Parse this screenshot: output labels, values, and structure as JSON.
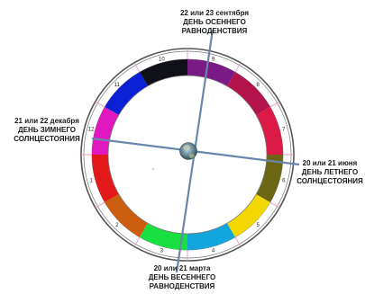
{
  "wheel": {
    "segments": [
      {
        "num": "1",
        "color": "#e31818"
      },
      {
        "num": "2",
        "color": "#cc5c0e"
      },
      {
        "num": "3",
        "color": "#18e040"
      },
      {
        "num": "4",
        "color": "#12a6dc"
      },
      {
        "num": "5",
        "color": "#f2d800"
      },
      {
        "num": "6",
        "color": "#6a6614"
      },
      {
        "num": "7",
        "color": "#dc1a46"
      },
      {
        "num": "8",
        "color": "#b4124a"
      },
      {
        "num": "9",
        "color": "#7a1a84"
      },
      {
        "num": "10",
        "color": "#101018"
      },
      {
        "num": "11",
        "color": "#0a20d4"
      },
      {
        "num": "12",
        "color": "#e018c0"
      }
    ],
    "center_icon": "earth-globe-icon"
  },
  "labels": {
    "autumn": {
      "line1": "22 или 23 сентября",
      "line2": "ДЕНЬ  ОСЕННЕГО",
      "line3": "РАВНОДЕНСТВИЯ"
    },
    "winter": {
      "line1": "21 или 22 декабря",
      "line2": "ДЕНЬ ЗИМНЕГО",
      "line3": "СОЛНЦЕСТОЯНИЯ"
    },
    "summer": {
      "line1": "20 или 21 июня",
      "line2": "ДЕНЬ ЛЕТНЕГО",
      "line3": "СОЛНЦЕСТОЯНИЯ"
    },
    "spring": {
      "line1": "20 или 21 марта",
      "line2": "ДЕНЬ ВЕСЕННЕГО",
      "line3": "РАВНОДЕНСТВИЯ"
    }
  }
}
